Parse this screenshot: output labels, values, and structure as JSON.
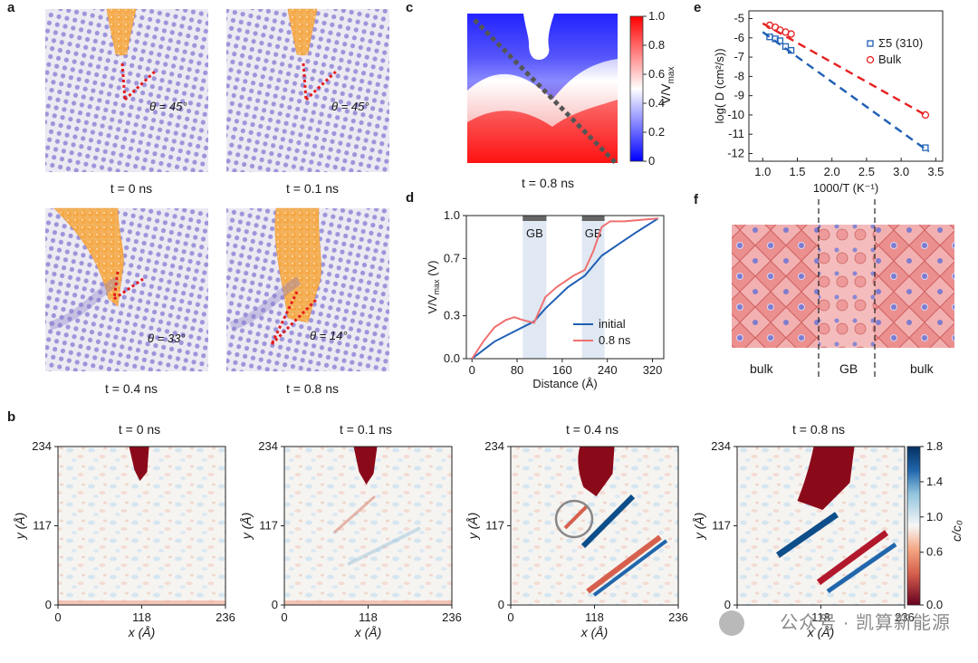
{
  "panel_labels": {
    "a": "a",
    "b": "b",
    "c": "c",
    "d": "d",
    "e": "e",
    "f": "f"
  },
  "panel_a": {
    "snapshots": [
      {
        "time": "t = 0 ns",
        "angle": "θ = 45°",
        "tip_depth": 0.45
      },
      {
        "time": "t = 0.1 ns",
        "angle": "θ = 45°",
        "tip_depth": 0.45
      },
      {
        "time": "t = 0.4 ns",
        "angle": "θ = 33°",
        "tip_depth": 0.6
      },
      {
        "time": "t = 0.8 ns",
        "angle": "θ = 14°",
        "tip_depth": 0.7
      }
    ],
    "colors": {
      "li_atom": "#f0a84c",
      "lattice_atom": "#8f86d6",
      "guide_line": "#e41a1c"
    }
  },
  "panel_b": {
    "maps": [
      {
        "title": "t = 0 ns"
      },
      {
        "title": "t = 0.1 ns"
      },
      {
        "title": "t = 0.4 ns"
      },
      {
        "title": "t = 0.8 ns"
      }
    ],
    "x_label": "x (Å)",
    "y_label": "y (Å)",
    "x_ticks": [
      "0",
      "118",
      "236"
    ],
    "y_ticks": [
      "0",
      "117",
      "234"
    ],
    "colorbar_label": "c/c₀",
    "colorbar_ticks": [
      "0.0",
      "0.6",
      "1.0",
      "1.4",
      "1.8"
    ]
  },
  "panel_c": {
    "caption": "t = 0.8 ns",
    "colorbar_label": "V/V",
    "colorbar_label_sub": "max",
    "colorbar_ticks": [
      "0",
      "0.2",
      "0.4",
      "0.6",
      "0.8",
      "1.0"
    ]
  },
  "chart_data": [
    {
      "panel": "d",
      "type": "line",
      "xlabel": "Distance (Å)",
      "ylabel": "V/V",
      "ylabel_sub": "max",
      "ylabel_unit": "(V)",
      "xlim": [
        -10,
        340
      ],
      "ylim": [
        0,
        1.0
      ],
      "x_ticks": [
        "0",
        "80",
        "160",
        "240",
        "320"
      ],
      "y_ticks": [
        "0.0",
        "0.3",
        "0.7",
        "1.0"
      ],
      "gb_regions": [
        {
          "label": "GB",
          "range": [
            90,
            132
          ]
        },
        {
          "label": "GB",
          "range": [
            195,
            235
          ]
        }
      ],
      "series": [
        {
          "name": "initial",
          "color": "#1f5fb4",
          "x": [
            0,
            40,
            80,
            110,
            130,
            170,
            200,
            230,
            260,
            290,
            330
          ],
          "y": [
            0,
            0.12,
            0.2,
            0.26,
            0.35,
            0.5,
            0.58,
            0.72,
            0.8,
            0.88,
            0.98
          ]
        },
        {
          "name": "0.8 ns",
          "color": "#f07070",
          "x": [
            0,
            20,
            40,
            60,
            75,
            90,
            110,
            130,
            150,
            180,
            200,
            215,
            230,
            245,
            270,
            300,
            330
          ],
          "y": [
            0,
            0.12,
            0.22,
            0.27,
            0.29,
            0.27,
            0.25,
            0.43,
            0.5,
            0.58,
            0.62,
            0.75,
            0.92,
            0.96,
            0.96,
            0.97,
            0.98
          ]
        }
      ]
    },
    {
      "panel": "e",
      "type": "scatter",
      "xlabel": "1000/T (K⁻¹)",
      "ylabel": "log( D (cm²/s))",
      "xlim": [
        0.8,
        3.6
      ],
      "ylim": [
        -12.4,
        -4.6
      ],
      "x_ticks": [
        "1.0",
        "1.5",
        "2.0",
        "2.5",
        "3.0",
        "3.5"
      ],
      "y_ticks": [
        "-5",
        "-6",
        "-7",
        "-8",
        "-9",
        "-10",
        "-11",
        "-12"
      ],
      "series": [
        {
          "name": "Σ5 (310)",
          "color": "#1f5fb4",
          "marker": "square",
          "x": [
            1.1,
            1.18,
            1.25,
            1.33,
            1.41,
            3.35
          ],
          "y": [
            -5.95,
            -6.05,
            -6.15,
            -6.45,
            -6.65,
            -11.7
          ],
          "fit": [
            [
              1.0,
              -5.7
            ],
            [
              3.4,
              -11.9
            ]
          ]
        },
        {
          "name": "Bulk",
          "color": "#e62020",
          "marker": "circle",
          "x": [
            1.1,
            1.18,
            1.25,
            1.33,
            1.41,
            3.35
          ],
          "y": [
            -5.35,
            -5.45,
            -5.6,
            -5.7,
            -5.8,
            -10.0
          ],
          "fit": [
            [
              1.0,
              -5.25
            ],
            [
              3.35,
              -10.0
            ]
          ]
        }
      ]
    }
  ],
  "panel_f": {
    "labels": [
      "bulk",
      "GB",
      "bulk"
    ]
  },
  "watermark": "公众号 · 凯算新能源"
}
